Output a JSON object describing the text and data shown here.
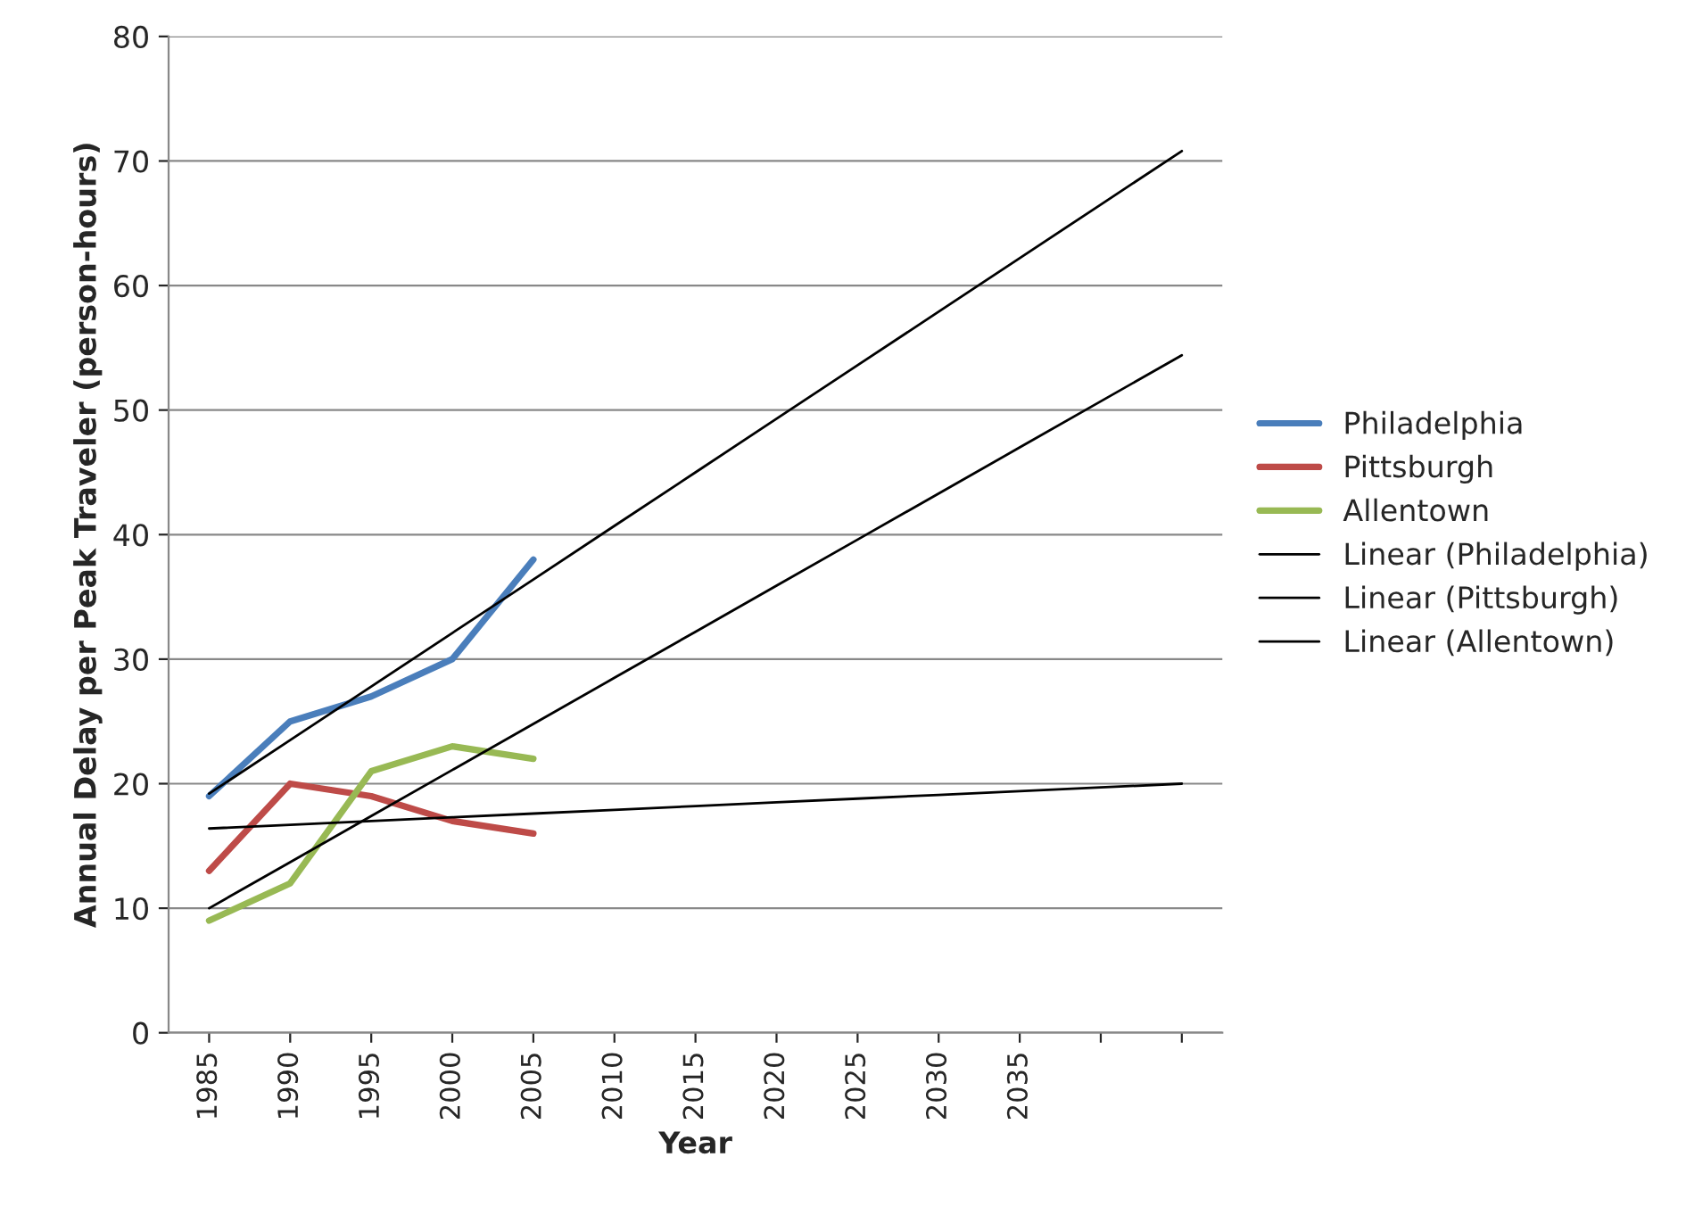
{
  "chart_data": {
    "type": "line",
    "xlabel": "Year",
    "ylabel": "Annual Delay per Peak Traveler (person-hours)",
    "categories": [
      "1985",
      "1990",
      "1995",
      "2000",
      "2005",
      "2010",
      "2015",
      "2020",
      "2025",
      "2030",
      "2035",
      null,
      null
    ],
    "ylim": [
      0,
      80
    ],
    "yticks": [
      0,
      10,
      20,
      30,
      40,
      50,
      60,
      70,
      80
    ],
    "grid": "y",
    "legend": "right",
    "marker": "none",
    "line_style": "solid",
    "series": [
      {
        "name": "Philadelphia",
        "color": "#4a7ebb",
        "values": [
          19,
          25,
          27,
          30,
          38,
          null,
          null,
          null,
          null,
          null,
          null,
          null,
          null
        ]
      },
      {
        "name": "Pittsburgh",
        "color": "#be4b48",
        "values": [
          13,
          20,
          19,
          17,
          16,
          null,
          null,
          null,
          null,
          null,
          null,
          null,
          null
        ]
      },
      {
        "name": "Allentown",
        "color": "#98b954",
        "values": [
          9,
          12,
          21,
          23,
          22,
          null,
          null,
          null,
          null,
          null,
          null,
          null,
          null
        ]
      },
      {
        "name": "Linear (Philadelphia)",
        "color": "#000000",
        "values": [
          19.2,
          23.5,
          27.8,
          32.1,
          36.4,
          40.7,
          45.0,
          49.3,
          53.6,
          57.9,
          62.2,
          66.5,
          70.8
        ]
      },
      {
        "name": "Linear (Pittsburgh)",
        "color": "#000000",
        "values": [
          16.4,
          16.7,
          17.0,
          17.3,
          17.6,
          17.9,
          18.2,
          18.5,
          18.8,
          19.1,
          19.4,
          19.7,
          20.0
        ]
      },
      {
        "name": "Linear (Allentown)",
        "color": "#000000",
        "values": [
          10.0,
          13.7,
          17.4,
          21.1,
          24.8,
          28.5,
          32.2,
          35.9,
          39.6,
          43.3,
          47.0,
          50.7,
          54.4
        ]
      }
    ]
  }
}
